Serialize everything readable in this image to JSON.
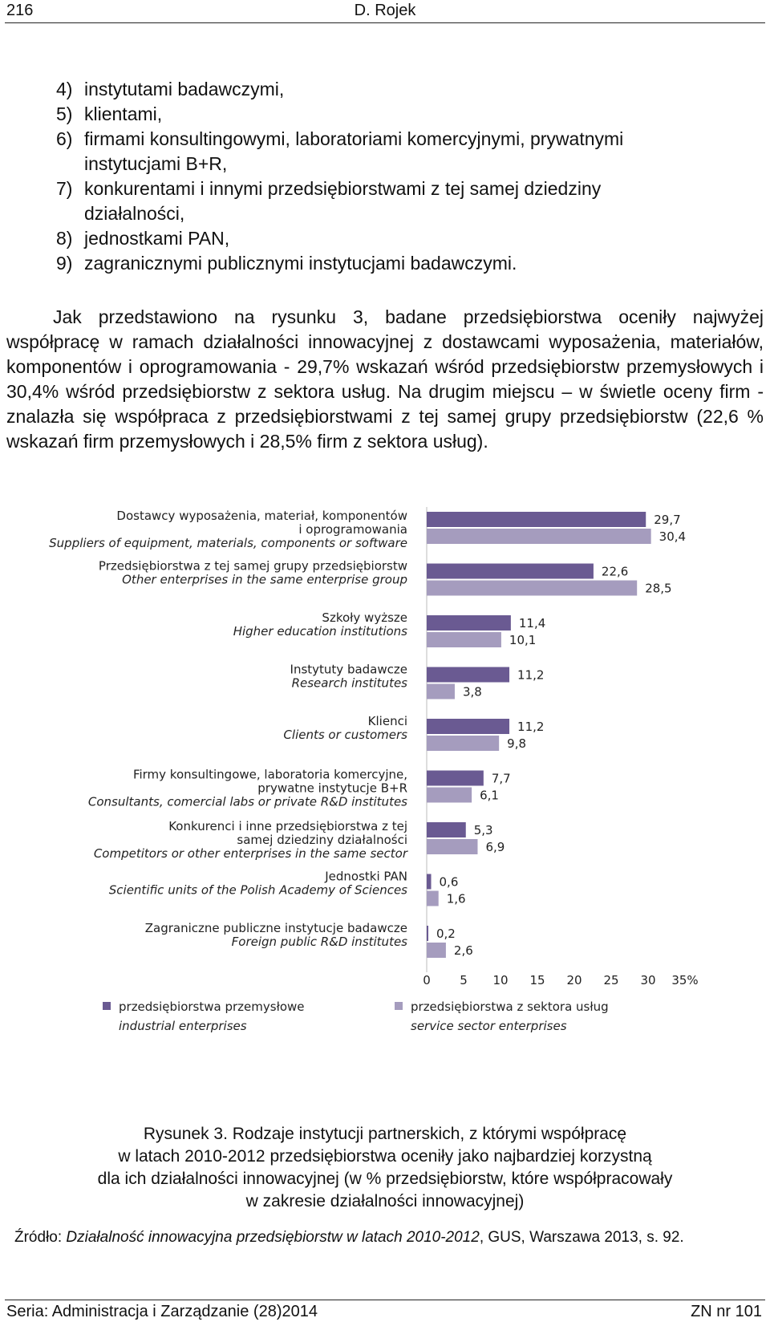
{
  "header": {
    "page_number": "216",
    "author": "D. Rojek"
  },
  "list_items": [
    {
      "num": "4)",
      "lines": [
        "instytutami badawczymi,"
      ]
    },
    {
      "num": "5)",
      "lines": [
        "klientami,"
      ]
    },
    {
      "num": "6)",
      "lines": [
        "firmami konsultingowymi, laboratoriami komercyjnymi, prywatnymi",
        "instytucjami B+R,"
      ]
    },
    {
      "num": "7)",
      "lines": [
        "konkurentami i innymi przedsiębiorstwami z tej samej dziedziny",
        "działalności,"
      ]
    },
    {
      "num": "8)",
      "lines": [
        "jednostkami PAN,"
      ]
    },
    {
      "num": "9)",
      "lines": [
        "zagranicznymi publicznymi instytucjami badawczymi."
      ]
    }
  ],
  "paragraph": "Jak przedstawiono na rysunku 3, badane przedsiębiorstwa oceniły najwyżej współpracę w ramach działalności innowacyjnej z dostawcami wyposażenia, materiałów, komponentów i oprogramowania - 29,7% wskazań wśród przedsiębiorstw przemysłowych i 30,4% wśród przedsiębiorstw z sektora usług. Na drugim miejscu – w świetle oceny firm - znalazła się współpraca z przedsiębiorstwami z tej samej grupy przedsiębiorstw (22,6 % wskazań firm przemysłowych i 28,5% firm z sektora usług).",
  "chart_data": {
    "type": "bar",
    "orientation": "horizontal",
    "categories": [
      {
        "pl": [
          "Dostawcy wyposażenia, materiał, komponentów",
          "i oprogramowania"
        ],
        "en": [
          "Suppliers of equipment, materials, components or software"
        ]
      },
      {
        "pl": [
          "Przedsiębiorstwa z tej samej grupy przedsiębiorstw"
        ],
        "en": [
          "Other enterprises in the same enterprise group"
        ]
      },
      {
        "pl": [
          "Szkoły wyższe"
        ],
        "en": [
          "Higher education institutions"
        ]
      },
      {
        "pl": [
          "Instytuty badawcze"
        ],
        "en": [
          "Research institutes"
        ]
      },
      {
        "pl": [
          "Klienci"
        ],
        "en": [
          "Clients or customers"
        ]
      },
      {
        "pl": [
          "Firmy konsultingowe, laboratoria komercyjne,",
          "prywatne instytucje B+R"
        ],
        "en": [
          "Consultants, comercial labs or private R&D institutes"
        ]
      },
      {
        "pl": [
          "Konkurenci i inne przedsiębiorstwa z tej",
          "samej dziedziny działalności"
        ],
        "en": [
          "Competitors or other enterprises in the same sector"
        ]
      },
      {
        "pl": [
          "Jednostki PAN"
        ],
        "en": [
          "Scientific units of the Polish Academy of Sciences"
        ]
      },
      {
        "pl": [
          "Zagraniczne publiczne instytucje badawcze"
        ],
        "en": [
          "Foreign public R&D institutes"
        ]
      }
    ],
    "series": [
      {
        "name": "przedsiębiorstwa przemysłowe",
        "name_en": "industrial enterprises",
        "color": "#6a5a92",
        "values": [
          29.7,
          22.6,
          11.4,
          11.2,
          11.2,
          7.7,
          5.3,
          0.6,
          0.2
        ],
        "labels": [
          "29,7",
          "22,6",
          "11,4",
          "11,2",
          "11,2",
          "7,7",
          "5,3",
          "0,6",
          "0,2"
        ]
      },
      {
        "name": "przedsiębiorstwa z sektora usług",
        "name_en": "service sector enterprises",
        "color": "#a59cbe",
        "values": [
          30.4,
          28.5,
          10.1,
          3.8,
          9.8,
          6.1,
          6.9,
          1.6,
          2.6
        ],
        "labels": [
          "30,4",
          "28,5",
          "10,1",
          "3,8",
          "9,8",
          "6,1",
          "6,9",
          "1,6",
          "2,6"
        ]
      }
    ],
    "xlim": [
      0,
      35
    ],
    "ticks": [
      0,
      5,
      10,
      15,
      20,
      25,
      30,
      35
    ],
    "tick_labels": [
      "0",
      "5",
      "10",
      "15",
      "20",
      "25",
      "30",
      "35%"
    ],
    "grid": false,
    "legend_position": "bottom"
  },
  "caption": [
    "Rysunek 3. Rodzaje instytucji partnerskich, z którymi współpracę",
    "w latach 2010-2012 przedsiębiorstwa oceniły jako najbardziej korzystną",
    "dla ich działalności innowacyjnej (w % przedsiębiorstw, które współpracowały",
    "w zakresie działalności innowacyjnej)"
  ],
  "source": {
    "prefix": "Źródło: ",
    "title": "Działalność innowacyjna przedsiębiorstw w latach 2010-2012",
    "rest": ", GUS, Warszawa 2013, s. 92."
  },
  "footer": {
    "series": "Seria: Administracja i Zarządzanie (28)2014",
    "issue": "ZN nr 101"
  }
}
